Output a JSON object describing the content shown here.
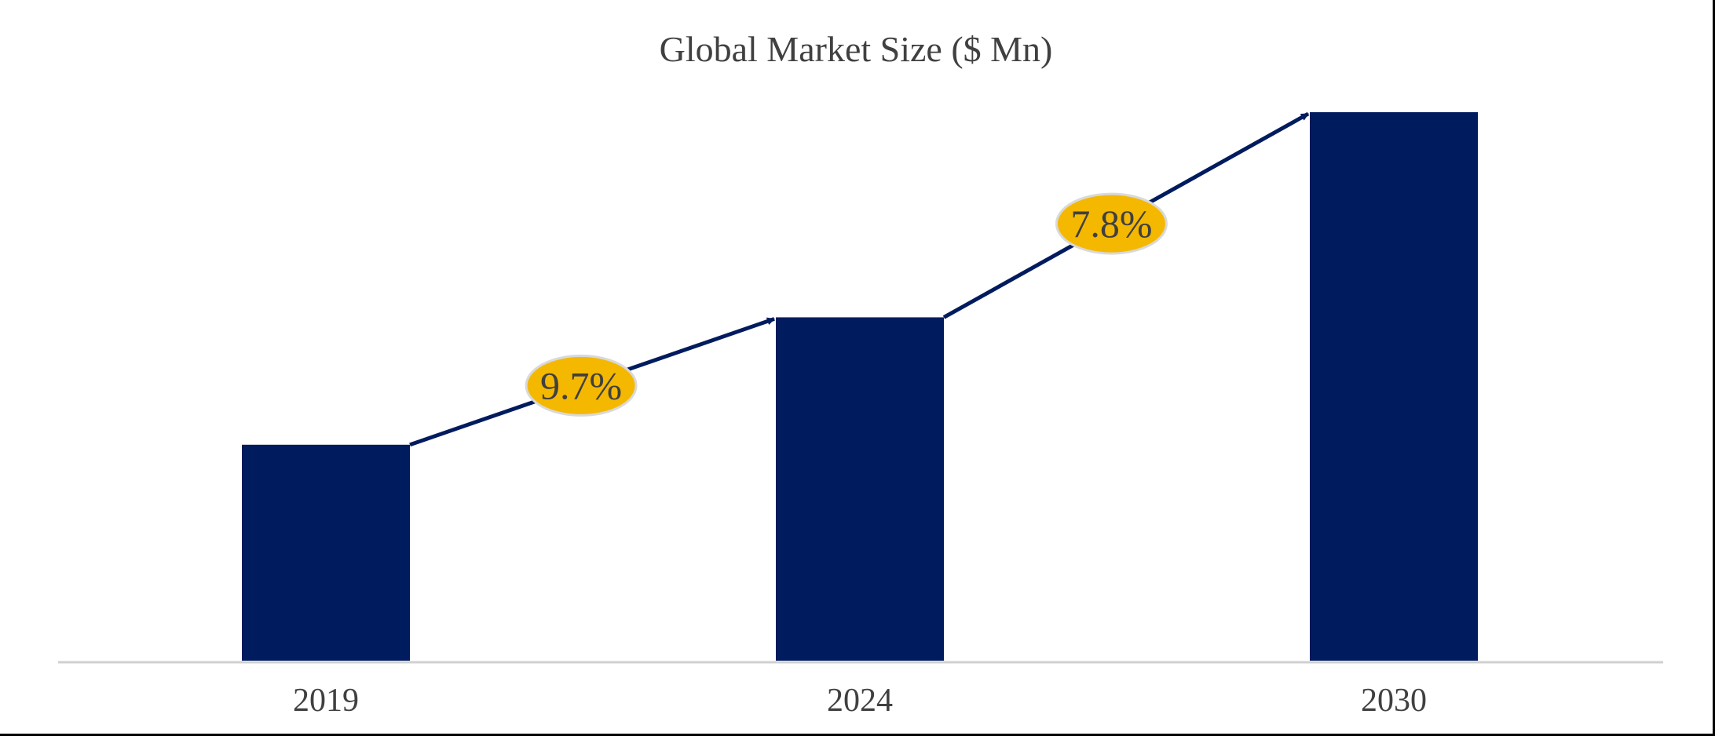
{
  "chart_data": {
    "type": "bar",
    "title": "Global Market Size ($ Mn)",
    "xlabel": "",
    "ylabel": "",
    "categories": [
      "2019",
      "2024",
      "2030"
    ],
    "values": [
      1.0,
      1.59,
      2.54
    ],
    "value_scale": "relative (no axis values printed)",
    "ylim": [
      0,
      2.54
    ],
    "grid": false,
    "legend": "none",
    "bar_color": "#001b5e",
    "axis_color": "#d0d0d0",
    "annotations": [
      {
        "label": "9.7%",
        "from": "2019",
        "to": "2024",
        "color": "#f5b800"
      },
      {
        "label": "7.8%",
        "from": "2024",
        "to": "2030",
        "color": "#f5b800"
      }
    ],
    "arrow_color": "#001b5e"
  }
}
